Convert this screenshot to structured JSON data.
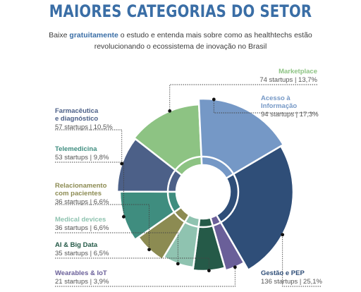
{
  "header": {
    "title": "MAIORES CATEGORIAS DO SETOR",
    "subtitle_pre": "Baixe ",
    "subtitle_link": "gratuitamente",
    "subtitle_line1_post": " o estudo e entenda mais sobre como as healthtechs estão",
    "subtitle_line2": "revolucionando o ecossistema de inovação no Brasil"
  },
  "chart_data": {
    "type": "pie",
    "variant": "donut",
    "segments": [
      {
        "name": "Marketplace",
        "stat": "74 startups | 13,7%",
        "value": 13.7,
        "color": "#8dc383"
      },
      {
        "name": "Acesso à\nInformação",
        "stat": "94 startups | 17,3%",
        "value": 17.3,
        "color": "#7598c6"
      },
      {
        "name": "Gestão e PEP",
        "stat": "136 startups | 25,1%",
        "value": 25.1,
        "color": "#2f4e78"
      },
      {
        "name": "Wearables & IoT",
        "stat": "21 startups | 3,9%",
        "value": 3.9,
        "color": "#6a5f99"
      },
      {
        "name": "AI & Big Data",
        "stat": "35 startups | 6,5%",
        "value": 6.5,
        "color": "#255a48"
      },
      {
        "name": "Medical devices",
        "stat": "36 startups | 6,6%",
        "value": 6.6,
        "color": "#8fc3b0"
      },
      {
        "name": "Relacionamento\ncom pacientes",
        "stat": "36 startups | 6,6%",
        "value": 6.6,
        "color": "#8c8b52"
      },
      {
        "name": "Telemedicina",
        "stat": "53 startups | 9,8%",
        "value": 9.8,
        "color": "#3f8d7f"
      },
      {
        "name": "Farmacêutica\ne diagnóstico",
        "stat": "57 startups | 10,5%",
        "value": 10.5,
        "color": "#4c6088"
      }
    ]
  }
}
